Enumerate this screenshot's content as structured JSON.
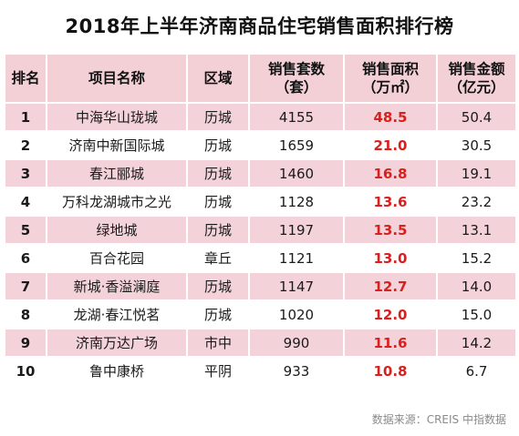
{
  "title": "2018年上半年济南商品住宅销售面积排行榜",
  "headers": {
    "rank": "排名",
    "name": "项目名称",
    "region": "区域",
    "units_line1": "销售套数",
    "units_line2": "（套）",
    "area_line1": "销售面积",
    "area_line2": "（万㎡）",
    "amount_line1": "销售金额",
    "amount_line2": "（亿元）"
  },
  "rows": [
    {
      "rank": "1",
      "name": "中海华山珑城",
      "region": "历城",
      "units": "4155",
      "area": "48.5",
      "amount": "50.4"
    },
    {
      "rank": "2",
      "name": "济南中新国际城",
      "region": "历城",
      "units": "1659",
      "area": "21.0",
      "amount": "30.5"
    },
    {
      "rank": "3",
      "name": "春江郦城",
      "region": "历城",
      "units": "1460",
      "area": "16.8",
      "amount": "19.1"
    },
    {
      "rank": "4",
      "name": "万科龙湖城市之光",
      "region": "历城",
      "units": "1128",
      "area": "13.6",
      "amount": "23.2"
    },
    {
      "rank": "5",
      "name": "绿地城",
      "region": "历城",
      "units": "1197",
      "area": "13.5",
      "amount": "13.1"
    },
    {
      "rank": "6",
      "name": "百合花园",
      "region": "章丘",
      "units": "1121",
      "area": "13.0",
      "amount": "15.2"
    },
    {
      "rank": "7",
      "name": "新城·香溢澜庭",
      "region": "历城",
      "units": "1147",
      "area": "12.7",
      "amount": "14.0"
    },
    {
      "rank": "8",
      "name": "龙湖·春江悦茗",
      "region": "历城",
      "units": "1020",
      "area": "12.0",
      "amount": "15.0"
    },
    {
      "rank": "9",
      "name": "济南万达广场",
      "region": "市中",
      "units": "990",
      "area": "11.6",
      "amount": "14.2"
    },
    {
      "rank": "10",
      "name": "鲁中康桥",
      "region": "平阴",
      "units": "933",
      "area": "10.8",
      "amount": "6.7"
    }
  ],
  "footer": "数据来源：CREIS 中指数据",
  "colors": {
    "header_bg": "#f3d0d6",
    "stripe_bg": "#f3d3d9",
    "highlight_text": "#d9201e"
  }
}
